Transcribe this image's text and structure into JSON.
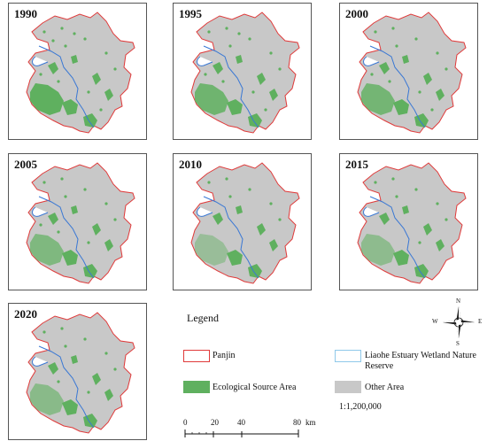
{
  "panels": [
    {
      "year": "1990"
    },
    {
      "year": "1995"
    },
    {
      "year": "2000"
    },
    {
      "year": "2005"
    },
    {
      "year": "2010"
    },
    {
      "year": "2015"
    },
    {
      "year": "2020"
    }
  ],
  "legend": {
    "title": "Legend",
    "items": [
      {
        "label": "Panjin"
      },
      {
        "label": "Liaohe  Estuary Wetland Nature Reserve"
      },
      {
        "label": "Ecological Source Area"
      },
      {
        "label": "Other Area"
      }
    ]
  },
  "scale_bar": {
    "ticks": [
      "0",
      "20",
      "40",
      "80"
    ],
    "unit": "km",
    "ratio": "1:1,200,000"
  },
  "compass": {
    "n": "N",
    "s": "S",
    "e": "E",
    "w": "W"
  },
  "colors": {
    "boundary": "#e03a3a",
    "reserve": "#3a78d4",
    "ecological_source": "#5fb05f",
    "other_area": "#c8c8c8"
  },
  "ecological_extent_by_panel": [
    1.0,
    0.85,
    0.8,
    0.7,
    0.45,
    0.55,
    0.6
  ]
}
